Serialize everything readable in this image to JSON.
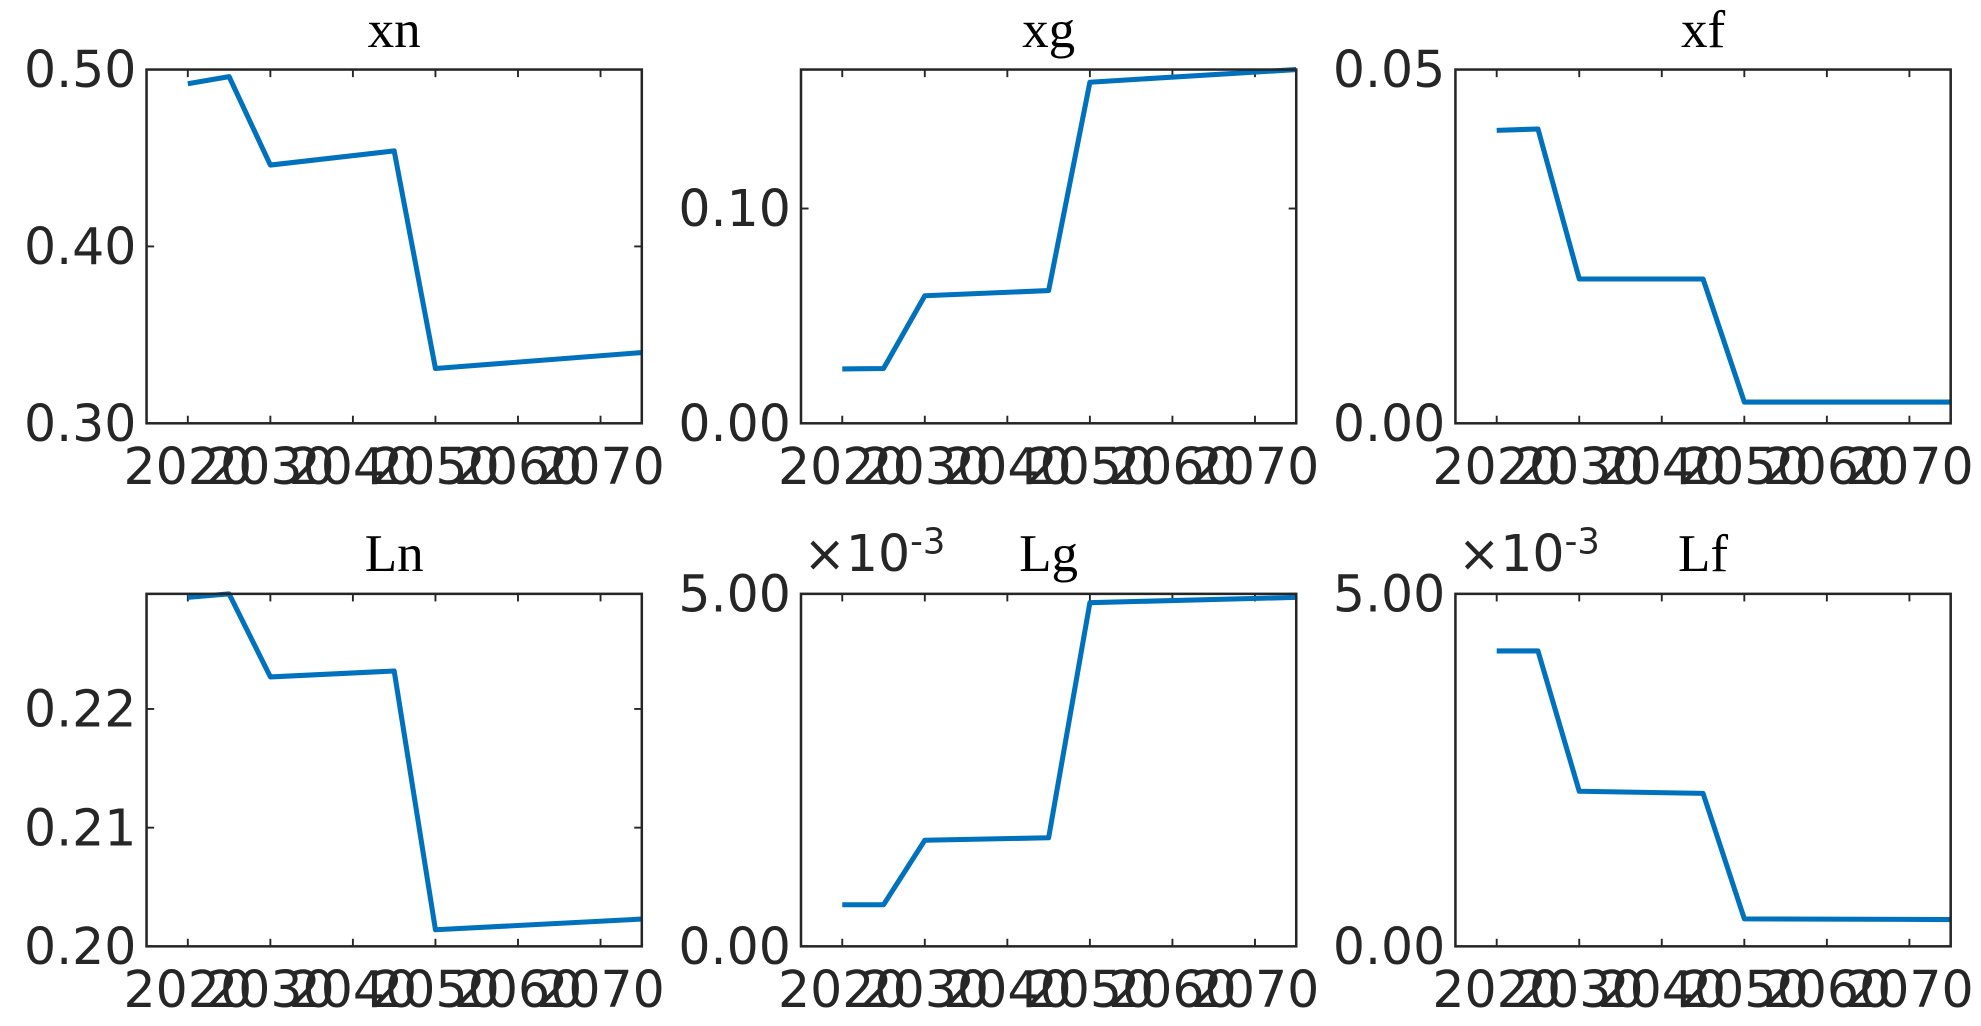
{
  "chart_data": [
    {
      "type": "line",
      "title": "xn",
      "x": [
        2020,
        2025,
        2030,
        2045,
        2050,
        2075
      ],
      "values": [
        0.492,
        0.496,
        0.446,
        0.454,
        0.331,
        0.34
      ],
      "color": "#0072bd",
      "xlim": [
        2015,
        2075
      ],
      "xticks": [
        2020,
        2030,
        2040,
        2050,
        2060,
        2070
      ],
      "ylim": [
        0.3,
        0.5
      ],
      "yticks": [
        {
          "value": 0.3,
          "label": "0.30"
        },
        {
          "value": 0.4,
          "label": "0.40"
        },
        {
          "value": 0.5,
          "label": "0.50"
        }
      ]
    },
    {
      "type": "line",
      "title": "xg",
      "x": [
        2020,
        2025,
        2030,
        2045,
        2050,
        2075
      ],
      "values": [
        0.0253,
        0.0255,
        0.0594,
        0.0618,
        0.1588,
        0.1647
      ],
      "color": "#0072bd",
      "xlim": [
        2015,
        2075
      ],
      "xticks": [
        2020,
        2030,
        2040,
        2050,
        2060,
        2070
      ],
      "ylim": [
        0,
        0.1647
      ],
      "yticks": [
        {
          "value": 0,
          "label": "0.00"
        },
        {
          "value": 0.1,
          "label": "0.10"
        }
      ]
    },
    {
      "type": "line",
      "title": "xf",
      "x": [
        2020,
        2025,
        2030,
        2045,
        2050,
        2075
      ],
      "values": [
        0.0414,
        0.0416,
        0.0204,
        0.0204,
        0.003,
        0.003
      ],
      "color": "#0072bd",
      "xlim": [
        2015,
        2075
      ],
      "xticks": [
        2020,
        2030,
        2040,
        2050,
        2060,
        2070
      ],
      "ylim": [
        0,
        0.05
      ],
      "yticks": [
        {
          "value": 0,
          "label": "0.00"
        },
        {
          "value": 0.05,
          "label": "0.05"
        }
      ]
    },
    {
      "type": "line",
      "title": "Ln",
      "x": [
        2020,
        2025,
        2030,
        2045,
        2050,
        2075
      ],
      "values": [
        0.2294,
        0.2297,
        0.2227,
        0.2232,
        0.2014,
        0.2023
      ],
      "color": "#0072bd",
      "xlim": [
        2015,
        2075
      ],
      "xticks": [
        2020,
        2030,
        2040,
        2050,
        2060,
        2070
      ],
      "ylim": [
        0.2,
        0.2297
      ],
      "yticks": [
        {
          "value": 0.2,
          "label": "0.20"
        },
        {
          "value": 0.21,
          "label": "0.21"
        },
        {
          "value": 0.22,
          "label": "0.22"
        }
      ]
    },
    {
      "type": "line",
      "title": "Lg",
      "y_exponent_base": "×10",
      "y_exponent": "-3",
      "x": [
        2020,
        2025,
        2030,
        2045,
        2050,
        2075
      ],
      "values": [
        0.59,
        0.59,
        1.505,
        1.54,
        4.875,
        4.95
      ],
      "color": "#0072bd",
      "xlim": [
        2015,
        2075
      ],
      "xticks": [
        2020,
        2030,
        2040,
        2050,
        2060,
        2070
      ],
      "ylim": [
        0,
        5
      ],
      "yticks": [
        {
          "value": 0,
          "label": "0.00"
        },
        {
          "value": 5,
          "label": "5.00"
        }
      ]
    },
    {
      "type": "line",
      "title": "Lf",
      "y_exponent_base": "×10",
      "y_exponent": "-3",
      "x": [
        2020,
        2025,
        2030,
        2045,
        2050,
        2075
      ],
      "values": [
        4.19,
        4.19,
        2.2,
        2.17,
        0.39,
        0.38
      ],
      "color": "#0072bd",
      "xlim": [
        2015,
        2075
      ],
      "xticks": [
        2020,
        2030,
        2040,
        2050,
        2060,
        2070
      ],
      "ylim": [
        0,
        5
      ],
      "yticks": [
        {
          "value": 0,
          "label": "0.00"
        },
        {
          "value": 5,
          "label": "5.00"
        }
      ]
    }
  ]
}
